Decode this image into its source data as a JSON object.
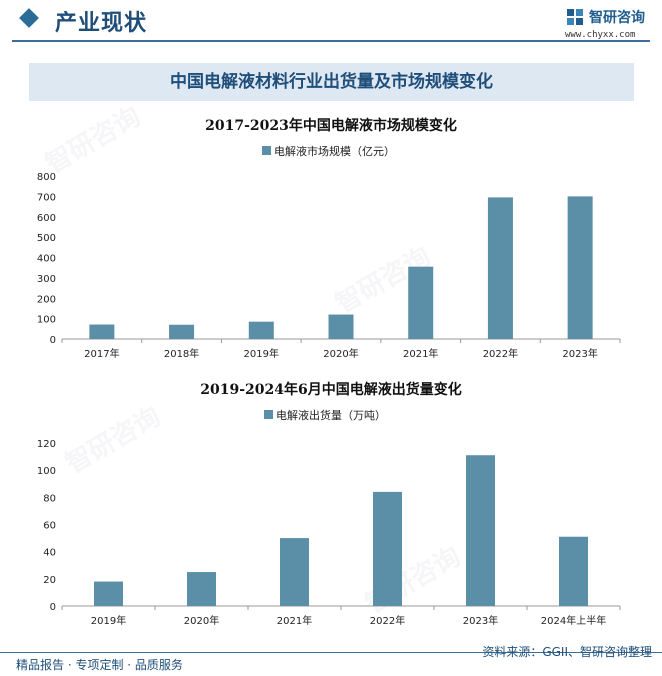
{
  "header": {
    "section_title": "产业现状",
    "logo_name": "智研咨询",
    "logo_url": "www.chyxx.com"
  },
  "banner": {
    "title": "中国电解液材料行业出货量及市场规模变化"
  },
  "watermark": {
    "text": "智研咨询"
  },
  "colors": {
    "bar": "#5b8fa8",
    "accent": "#1f4e79",
    "banner_bg": "#dde8f3"
  },
  "chart_data": [
    {
      "type": "bar",
      "title": "2017-2023年中国电解液市场规模变化",
      "legend": "top-center",
      "categories": [
        "2017年",
        "2018年",
        "2019年",
        "2020年",
        "2021年",
        "2022年",
        "2023年"
      ],
      "series": [
        {
          "name": "电解液市场规模（亿元）",
          "values": [
            71,
            70,
            85,
            120,
            355,
            695,
            700
          ]
        }
      ],
      "ylim": [
        0,
        800
      ],
      "yticks": [
        0,
        100,
        200,
        300,
        400,
        500,
        600,
        700,
        800
      ],
      "grid": false
    },
    {
      "type": "bar",
      "title": "2019-2024年6月中国电解液出货量变化",
      "legend": "top-center",
      "categories": [
        "2019年",
        "2020年",
        "2021年",
        "2022年",
        "2023年",
        "2024年上半年"
      ],
      "series": [
        {
          "name": "电解液出货量（万吨）",
          "values": [
            18,
            25,
            50,
            84,
            111,
            51
          ]
        }
      ],
      "ylim": [
        0,
        120
      ],
      "yticks": [
        0,
        20,
        40,
        60,
        80,
        100,
        120
      ],
      "grid": false
    }
  ],
  "footer": {
    "left": "精品报告 · 专项定制 · 品质服务",
    "right": "资料来源：GGII、智研咨询整理"
  }
}
